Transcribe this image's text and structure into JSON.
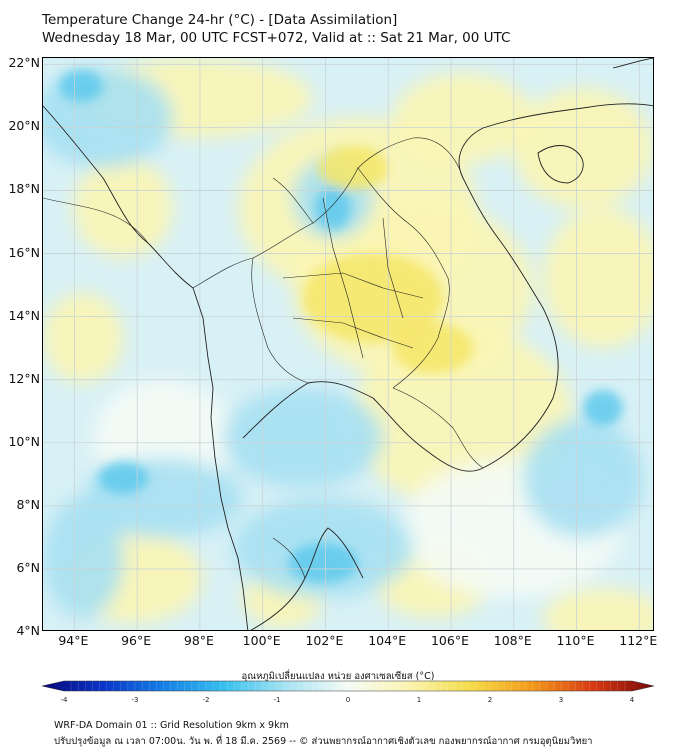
{
  "title": {
    "line1": "Temperature Change 24-hr (°C) - [Data Assimilation]",
    "line2": "Wednesday 18 Mar, 00 UTC FCST+072, Valid at :: Sat 21 Mar, 00 UTC"
  },
  "map": {
    "lon_range": [
      93,
      112.5
    ],
    "lat_range": [
      4,
      22.2
    ],
    "lat_labels": [
      "22°N",
      "20°N",
      "18°N",
      "16°N",
      "14°N",
      "12°N",
      "10°N",
      "8°N",
      "6°N",
      "4°N"
    ],
    "lon_labels": [
      "94°E",
      "96°E",
      "98°E",
      "100°E",
      "102°E",
      "104°E",
      "106°E",
      "108°E",
      "110°E",
      "112°E"
    ],
    "colors": {
      "base": "#d8f1f6",
      "cool_strong": "#5fc9ec",
      "cool": "#a6e0f2",
      "neutral": "#f4fbf5",
      "warm": "#fbf5b2",
      "warm_strong": "#f4e668",
      "border": "#222222",
      "grid": "#c9d3d6"
    }
  },
  "colorbar": {
    "title": "อุณหภูมิเปลี่ยนแปลง หน่วย องศาเซลเซียส (°C)",
    "min": -4,
    "max": 4,
    "ticks": [
      "-4",
      "-3",
      "-2",
      "-1",
      "0",
      "1",
      "2",
      "3",
      "4"
    ],
    "colors": [
      "#08087a",
      "#0a34c8",
      "#1580e6",
      "#39c2ee",
      "#a9e4f3",
      "#f5fbf5",
      "#fbf4b0",
      "#f4dc4a",
      "#f39a1a",
      "#d83a12",
      "#7a0808"
    ]
  },
  "footer": {
    "line1": "WRF-DA Domain 01 :: Grid Resolution 9km x 9km",
    "line2": "ปรับปรุงข้อมูล ณ เวลา 07:00น. วัน พ. ที่ 18 มี.ค. 2569 -- © ส่วนพยากรณ์อากาศเชิงตัวเลข กองพยากรณ์อากาศ กรมอุตุนิยมวิทยา"
  }
}
